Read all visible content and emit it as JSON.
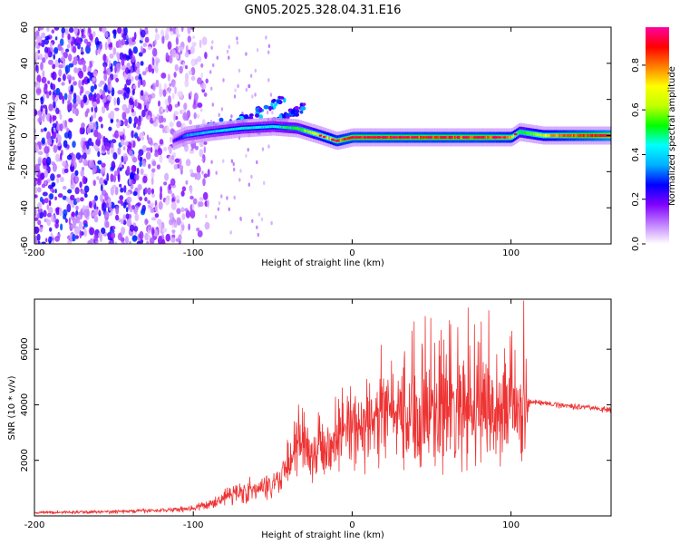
{
  "title": "GN05.2025.328.04.31.E16",
  "chart_data": [
    {
      "type": "heatmap",
      "xlabel": "Height of straight line (km)",
      "ylabel": "Frequency (Hz)",
      "xlim": [
        -200,
        163
      ],
      "ylim": [
        -60,
        60
      ],
      "x_ticks": [
        -200,
        -100,
        0,
        100
      ],
      "y_ticks": [
        -60,
        -40,
        -20,
        0,
        20,
        40,
        60
      ],
      "colorbar": {
        "label": "Normalized spectral amplitude",
        "range": [
          0,
          0.97
        ],
        "ticks": [
          0.0,
          0.2,
          0.4,
          0.6,
          0.8
        ],
        "colormap": [
          "#ffffff",
          "#c080ff",
          "#8000ff",
          "#0000ff",
          "#00b0ff",
          "#00ffff",
          "#00ff00",
          "#c0ff00",
          "#ffff00",
          "#ff8000",
          "#ff0000",
          "#ff00a0"
        ]
      },
      "noise_region": {
        "x_range": [
          -200,
          -90
        ],
        "freq_range": [
          -60,
          60
        ],
        "amplitude_range": [
          0.05,
          0.3
        ]
      },
      "ridge": {
        "x": [
          -113,
          -105,
          -90,
          -70,
          -50,
          -35,
          -20,
          -10,
          0,
          20,
          40,
          60,
          80,
          100,
          105,
          120,
          140,
          163
        ],
        "freq": [
          -3,
          0,
          2,
          4,
          5,
          4,
          0,
          -3,
          -1,
          -1,
          -1,
          -1,
          -1,
          -1,
          2,
          0,
          0,
          0
        ],
        "amplitude": [
          0.2,
          0.35,
          0.4,
          0.45,
          0.45,
          0.55,
          0.7,
          0.8,
          0.85,
          0.85,
          0.85,
          0.85,
          0.85,
          0.8,
          0.6,
          0.75,
          0.85,
          0.95
        ]
      },
      "branches": [
        {
          "x": [
            -100,
            -80,
            -60,
            -48,
            -42
          ],
          "freq": [
            2,
            6,
            12,
            18,
            22
          ],
          "amplitude": 0.35
        },
        {
          "x": [
            -60,
            -50,
            -40,
            -32,
            -28
          ],
          "freq": [
            4,
            7,
            11,
            15,
            19
          ],
          "amplitude": 0.3
        }
      ]
    },
    {
      "type": "line",
      "xlabel": "Height of straight line (km)",
      "ylabel": "SNR (10 * v/v)",
      "xlim": [
        -200,
        163
      ],
      "ylim": [
        0,
        7800
      ],
      "x_ticks": [
        -200,
        -100,
        0,
        100
      ],
      "y_ticks": [
        2000,
        4000,
        6000
      ],
      "color": "#ee3333",
      "envelope": {
        "x": [
          -200,
          -150,
          -120,
          -100,
          -90,
          -80,
          -70,
          -60,
          -50,
          -40,
          -35,
          -30,
          -25,
          -20,
          -10,
          0,
          10,
          20,
          30,
          40,
          50,
          60,
          70,
          80,
          90,
          100,
          108,
          112,
          130,
          150,
          163
        ],
        "mean": [
          120,
          150,
          200,
          280,
          400,
          700,
          900,
          900,
          1200,
          1800,
          2400,
          2600,
          2300,
          2500,
          2800,
          3100,
          3300,
          3600,
          3800,
          3700,
          3600,
          3600,
          3700,
          3700,
          3700,
          3800,
          3800,
          4100,
          4000,
          3900,
          3800
        ],
        "spread": [
          60,
          70,
          90,
          140,
          200,
          350,
          500,
          450,
          600,
          900,
          1100,
          1200,
          1200,
          1300,
          1400,
          1600,
          1800,
          2000,
          2200,
          2400,
          2400,
          2300,
          2300,
          2300,
          2200,
          2100,
          2000,
          120,
          120,
          120,
          120
        ]
      },
      "peaks": [
        {
          "x": 108,
          "y": 7750
        },
        {
          "x": 73,
          "y": 7500
        },
        {
          "x": 39,
          "y": 7000
        },
        {
          "x": 86,
          "y": 7400
        },
        {
          "x": 62,
          "y": 6900
        },
        {
          "x": 44,
          "y": 6200
        }
      ]
    }
  ]
}
